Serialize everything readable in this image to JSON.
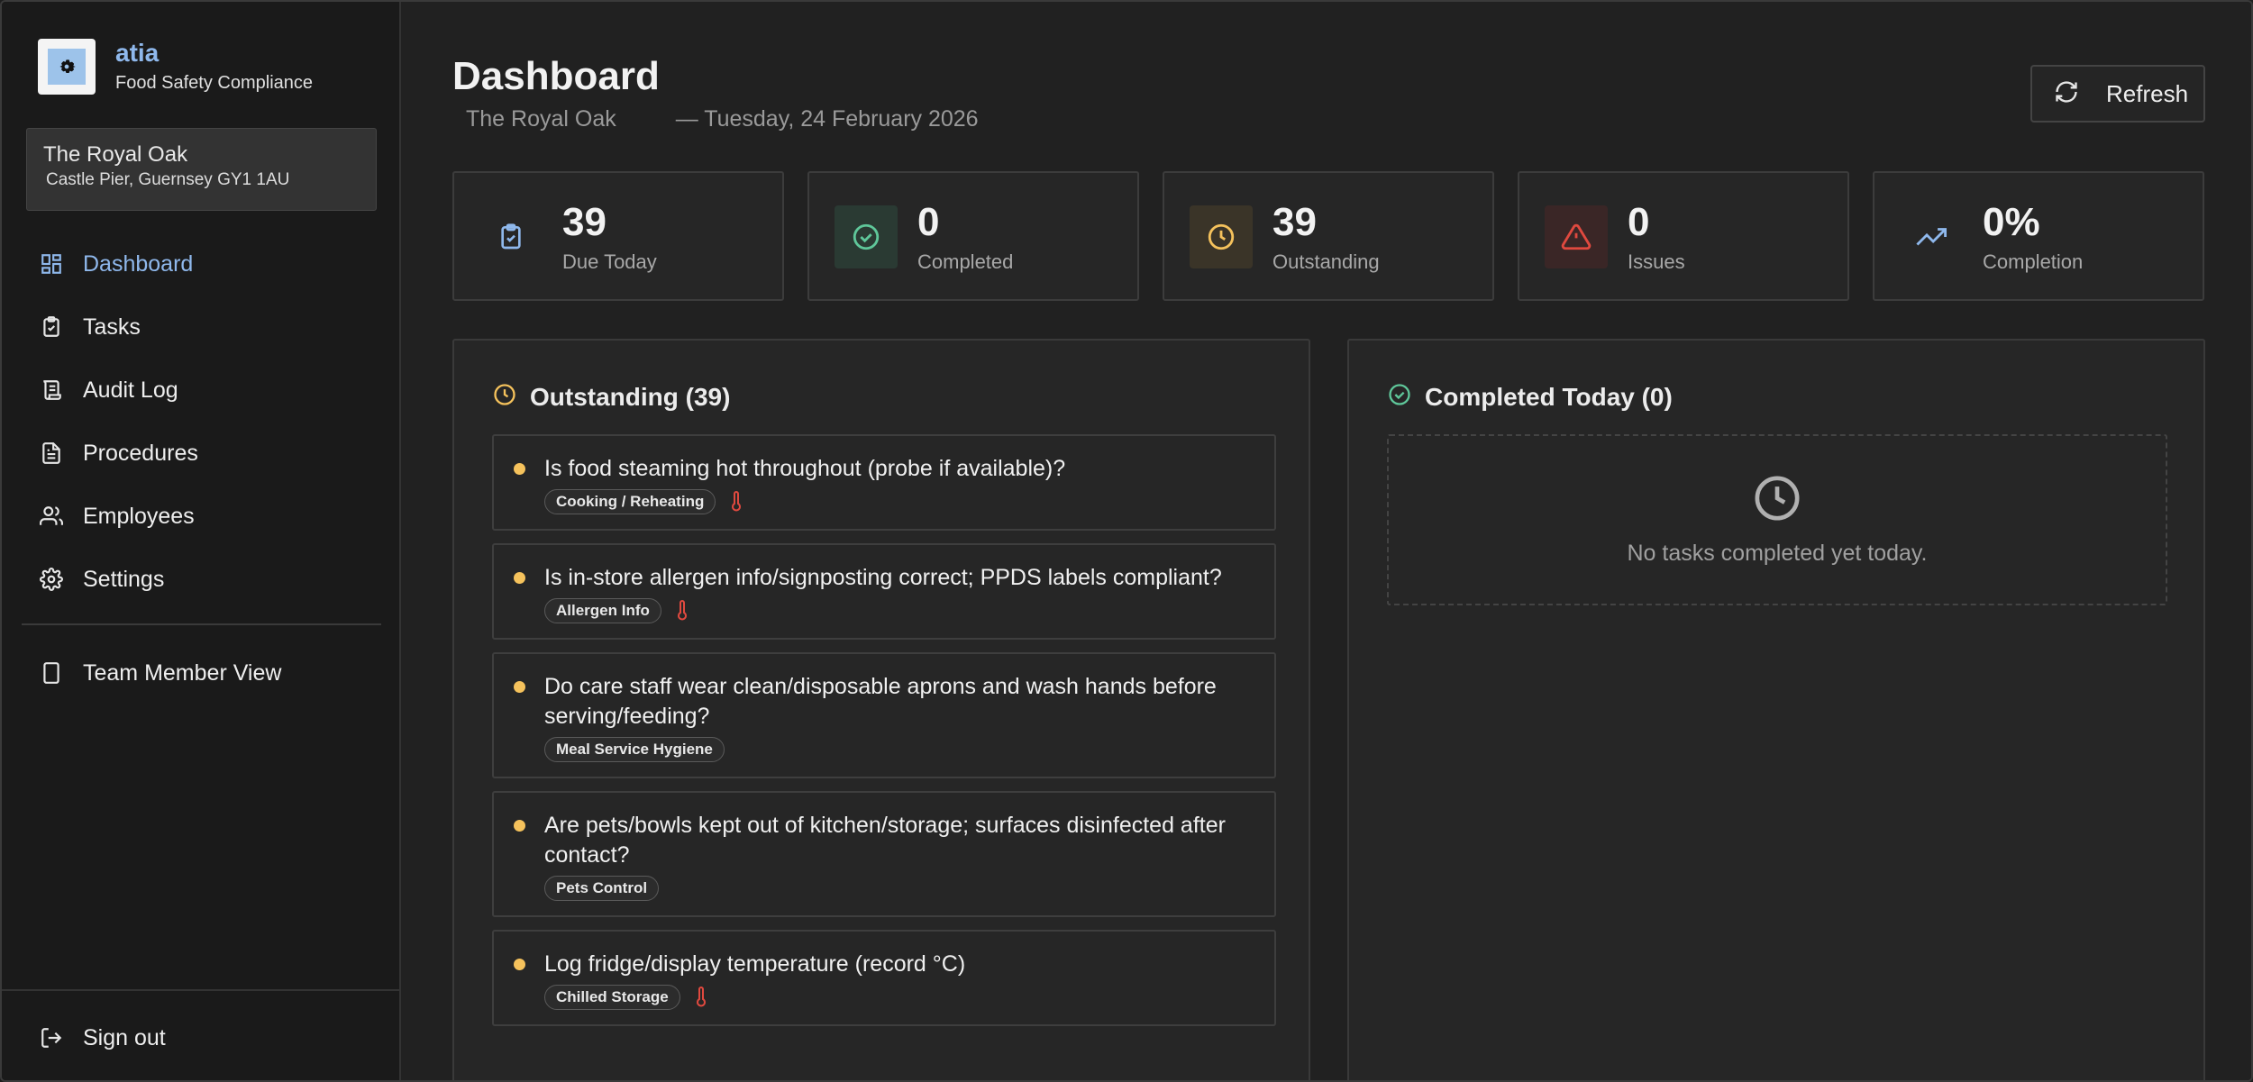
{
  "brand": {
    "name": "atia",
    "subtitle": "Food Safety Compliance"
  },
  "venue": {
    "name": "The Royal Oak",
    "address": "Castle Pier, Guernsey GY1 1AU"
  },
  "nav": [
    {
      "label": "Dashboard",
      "icon": "dashboard-icon",
      "active": true
    },
    {
      "label": "Tasks",
      "icon": "clipboard-icon"
    },
    {
      "label": "Audit Log",
      "icon": "scroll-icon"
    },
    {
      "label": "Procedures",
      "icon": "document-icon"
    },
    {
      "label": "Employees",
      "icon": "users-icon"
    },
    {
      "label": "Settings",
      "icon": "gear-icon"
    }
  ],
  "team_view": {
    "label": "Team Member View",
    "icon": "tablet-icon"
  },
  "signout": {
    "label": "Sign out",
    "icon": "logout-icon"
  },
  "header": {
    "title": "Dashboard",
    "venue": "The Royal Oak",
    "date": "— Tuesday, 24 February 2026",
    "refresh_label": "Refresh"
  },
  "stats": [
    {
      "value": "39",
      "label": "Due Today",
      "icon": "clipboard-check-icon",
      "color": "#8fb8ec"
    },
    {
      "value": "0",
      "label": "Completed",
      "icon": "check-circle-icon",
      "color": "#5fc79a"
    },
    {
      "value": "39",
      "label": "Outstanding",
      "icon": "clock-icon",
      "color": "#f5c25c"
    },
    {
      "value": "0",
      "label": "Issues",
      "icon": "warning-icon",
      "color": "#e0493f"
    },
    {
      "value": "0%",
      "label": "Completion",
      "icon": "trending-up-icon",
      "color": "#8fb8ec"
    }
  ],
  "outstanding": {
    "title": "Outstanding (39)",
    "tasks": [
      {
        "question": "Is food steaming hot throughout (probe if available)?",
        "tag": "Cooking / Reheating",
        "temperature": true
      },
      {
        "question": "Is in-store allergen info/signposting correct; PPDS labels compliant?",
        "tag": "Allergen Info",
        "temperature": true
      },
      {
        "question": "Do care staff wear clean/disposable aprons and wash hands before serving/feeding?",
        "tag": "Meal Service Hygiene",
        "temperature": false
      },
      {
        "question": "Are pets/bowls kept out of kitchen/storage; surfaces disinfected after contact?",
        "tag": "Pets Control",
        "temperature": false
      },
      {
        "question": "Log fridge/display temperature (record °C)",
        "tag": "Chilled Storage",
        "temperature": true
      }
    ]
  },
  "completed": {
    "title": "Completed Today (0)",
    "empty_message": "No tasks completed yet today."
  },
  "colors": {
    "accent": "#8fb8ec",
    "success": "#5fc79a",
    "warning": "#f5c25c",
    "danger": "#e0493f"
  }
}
